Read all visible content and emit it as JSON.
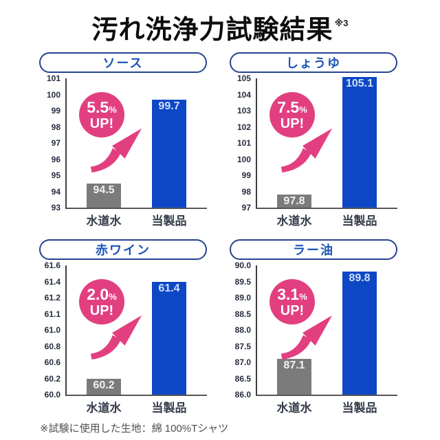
{
  "title": {
    "text": "汚れ洗浄力試験結果",
    "note_ref": "※3"
  },
  "footer": {
    "note": "※試験に使用した生地：綿 100%Tシャツ"
  },
  "colors": {
    "bar_blue": "#0e47c6",
    "bar_gray": "#7b7b7b",
    "accent_pink": "#e23f80",
    "pill_border": "#27418f",
    "pill_text": "#1a54b8"
  },
  "chart_data": [
    {
      "type": "bar",
      "title": "ソース",
      "categories": [
        "水道水",
        "当製品"
      ],
      "values": [
        94.5,
        99.7
      ],
      "value_labels": [
        "94.5",
        "99.7"
      ],
      "yticks": [
        "101",
        "100",
        "99",
        "98",
        "97",
        "96",
        "95",
        "94",
        "93"
      ],
      "ylim": [
        93,
        101
      ],
      "badge": {
        "percent": "5.5",
        "percent_sign": "%",
        "suffix": "UP!"
      }
    },
    {
      "type": "bar",
      "title": "しょうゆ",
      "categories": [
        "水道水",
        "当製品"
      ],
      "values": [
        97.8,
        105.1
      ],
      "value_labels": [
        "97.8",
        "105.1"
      ],
      "yticks": [
        "105",
        "104",
        "103",
        "102",
        "101",
        "100",
        "99",
        "98",
        "97"
      ],
      "ylim": [
        97,
        105
      ],
      "badge": {
        "percent": "7.5",
        "percent_sign": "%",
        "suffix": "UP!"
      }
    },
    {
      "type": "bar",
      "title": "赤ワイン",
      "categories": [
        "水道水",
        "当製品"
      ],
      "values": [
        60.2,
        61.4
      ],
      "value_labels": [
        "60.2",
        "61.4"
      ],
      "yticks": [
        "61.6",
        "61.4",
        "61.2",
        "61.1",
        "61.0",
        "60.8",
        "60.6",
        "60.2",
        "60.0"
      ],
      "ylim": [
        60.0,
        61.6
      ],
      "badge": {
        "percent": "2.0",
        "percent_sign": "%",
        "suffix": "UP!"
      }
    },
    {
      "type": "bar",
      "title": "ラー油",
      "categories": [
        "水道水",
        "当製品"
      ],
      "values": [
        87.1,
        89.8
      ],
      "value_labels": [
        "87.1",
        "89.8"
      ],
      "yticks": [
        "90.0",
        "89.5",
        "89.0",
        "88.5",
        "88.0",
        "87.5",
        "87.0",
        "86.5",
        "86.0"
      ],
      "ylim": [
        86.0,
        90.0
      ],
      "badge": {
        "percent": "3.1",
        "percent_sign": "%",
        "suffix": "UP!"
      }
    }
  ]
}
